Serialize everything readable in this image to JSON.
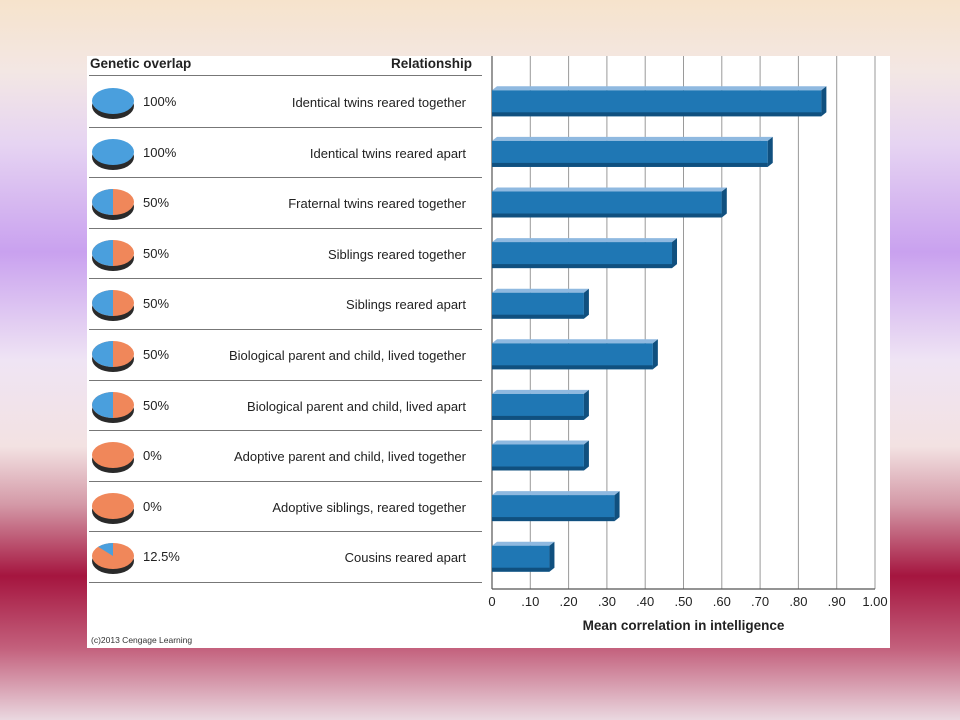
{
  "headers": {
    "genetic_overlap": "Genetic overlap",
    "relationship": "Relationship"
  },
  "credit": "(c)2013 Cengage Learning",
  "colors": {
    "bar": "#1f77b4",
    "bar_top": "#8fb9e0",
    "bar_side": "#10507f",
    "pie_blue": "#4a9fdd",
    "pie_orange": "#f0875a"
  },
  "rows": [
    {
      "overlap": "100%",
      "relationship": "Identical twins reared together",
      "pie_fraction": 1.0
    },
    {
      "overlap": "100%",
      "relationship": "Identical twins reared apart",
      "pie_fraction": 1.0
    },
    {
      "overlap": "50%",
      "relationship": "Fraternal twins reared together",
      "pie_fraction": 0.5
    },
    {
      "overlap": "50%",
      "relationship": "Siblings reared together",
      "pie_fraction": 0.5
    },
    {
      "overlap": "50%",
      "relationship": "Siblings reared apart",
      "pie_fraction": 0.5
    },
    {
      "overlap": "50%",
      "relationship": "Biological parent and child, lived together",
      "pie_fraction": 0.5
    },
    {
      "overlap": "50%",
      "relationship": "Biological parent and child, lived apart",
      "pie_fraction": 0.5
    },
    {
      "overlap": "0%",
      "relationship": "Adoptive parent and child, lived together",
      "pie_fraction": 0.0
    },
    {
      "overlap": "0%",
      "relationship": "Adoptive siblings, reared together",
      "pie_fraction": 0.0
    },
    {
      "overlap": "12.5%",
      "relationship": "Cousins reared apart",
      "pie_fraction": 0.125
    }
  ],
  "chart_data": {
    "type": "bar",
    "orientation": "horizontal",
    "categories": [
      "Identical twins reared together",
      "Identical twins reared apart",
      "Fraternal twins reared together",
      "Siblings reared together",
      "Siblings reared apart",
      "Biological parent and child, lived together",
      "Biological parent and child, lived apart",
      "Adoptive parent and child, lived together",
      "Adoptive siblings, reared together",
      "Cousins reared apart"
    ],
    "values": [
      0.86,
      0.72,
      0.6,
      0.47,
      0.24,
      0.42,
      0.24,
      0.24,
      0.32,
      0.15
    ],
    "xlabel": "Mean correlation in intelligence",
    "xlim": [
      0,
      1.0
    ],
    "ticks": [
      0,
      0.1,
      0.2,
      0.3,
      0.4,
      0.5,
      0.6,
      0.7,
      0.8,
      0.9,
      1.0
    ],
    "tick_labels": [
      "0",
      ".10",
      ".20",
      ".30",
      ".40",
      ".50",
      ".60",
      ".70",
      ".80",
      ".90",
      "1.00"
    ],
    "grid": true
  }
}
